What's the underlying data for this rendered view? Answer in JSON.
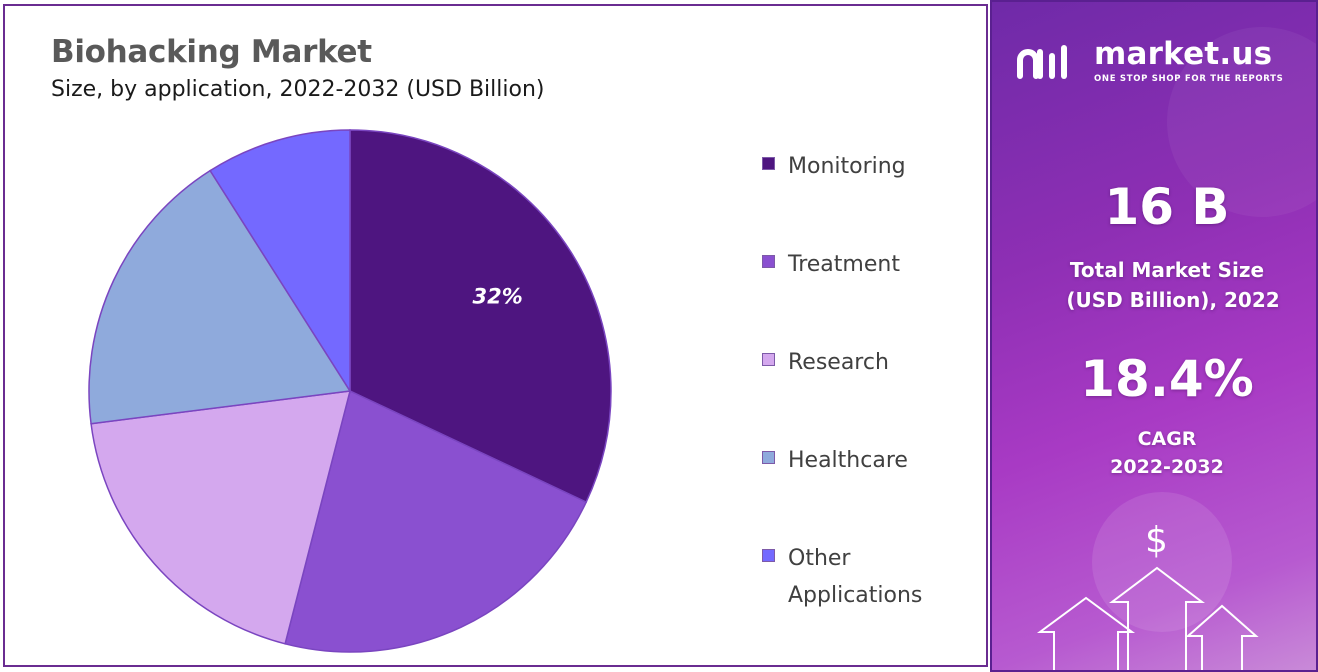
{
  "chart_data": {
    "type": "pie",
    "title": "Biohacking Market",
    "subtitle": "Size, by application, 2022-2032 (USD Billion)",
    "categories": [
      "Monitoring",
      "Treatment",
      "Research",
      "Healthcare",
      "Other Applications"
    ],
    "values": [
      32,
      22,
      19,
      18,
      9
    ],
    "colors": [
      "#4e1580",
      "#8a50d0",
      "#d4a8ee",
      "#8faadc",
      "#7469ff"
    ],
    "slice_labels": [
      "32%",
      "",
      "",
      "",
      ""
    ],
    "legend_position": "right"
  },
  "brand": {
    "name": "market.us",
    "tagline": "ONE STOP SHOP FOR THE REPORTS"
  },
  "stats": {
    "market_size_value": "16 B",
    "market_size_label_line1": "Total Market Size",
    "market_size_label_line2": "(USD Billion), 2022",
    "cagr_value": "18.4%",
    "cagr_label_line1": "CAGR",
    "cagr_label_line2": "2022-2032"
  },
  "decor": {
    "dollar_symbol": "$"
  }
}
